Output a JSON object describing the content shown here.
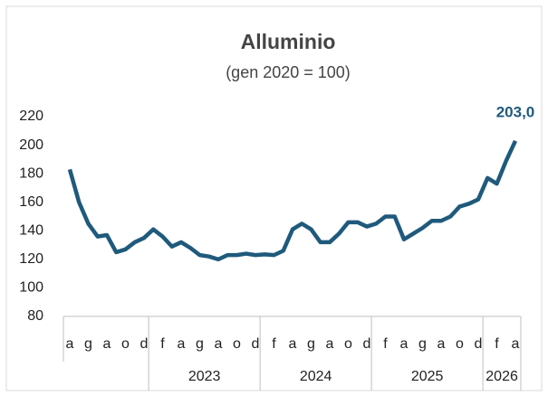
{
  "chart_data": {
    "type": "line",
    "title": "Alluminio",
    "subtitle": "(gen 2020 = 100)",
    "categories": [
      "a",
      null,
      "g",
      null,
      "a",
      null,
      "o",
      null,
      "d",
      null,
      "f",
      null,
      "a",
      null,
      "g",
      null,
      "a",
      null,
      "o",
      null,
      "d",
      null,
      "f",
      null,
      "a",
      null,
      "g",
      null,
      "a",
      null,
      "o",
      null,
      "d",
      null,
      "f",
      null,
      "a",
      null,
      "g",
      null,
      "a",
      null,
      "o",
      null,
      "d",
      null,
      "f",
      null,
      "a"
    ],
    "x_groups": [
      "2023",
      "2024",
      "2025",
      "2026"
    ],
    "series": [
      {
        "name": "Alluminio",
        "color": "#1f5a7c",
        "values": [
          183,
          160,
          145,
          136,
          137,
          125,
          127,
          132,
          135,
          141,
          136,
          129,
          132,
          128,
          123,
          122,
          120,
          123,
          123,
          124,
          123,
          123.5,
          123,
          126,
          141,
          145,
          141,
          132,
          132,
          138,
          146,
          146,
          143,
          145,
          150,
          150,
          134,
          138,
          142,
          147,
          147,
          150,
          157,
          159,
          162,
          177,
          173,
          189,
          203
        ],
        "value_labels": [
          null,
          null,
          null,
          null,
          null,
          null,
          null,
          null,
          null,
          null,
          null,
          null,
          null,
          null,
          null,
          null,
          null,
          null,
          null,
          null,
          null,
          null,
          null,
          null,
          null,
          null,
          null,
          null,
          null,
          null,
          null,
          null,
          null,
          null,
          null,
          null,
          null,
          null,
          null,
          null,
          null,
          null,
          null,
          null,
          null,
          null,
          null,
          null,
          "203,0"
        ]
      }
    ],
    "ylim": [
      80,
      220
    ],
    "yticks": [
      80,
      100,
      120,
      140,
      160,
      180,
      200,
      220
    ],
    "grid": false
  }
}
